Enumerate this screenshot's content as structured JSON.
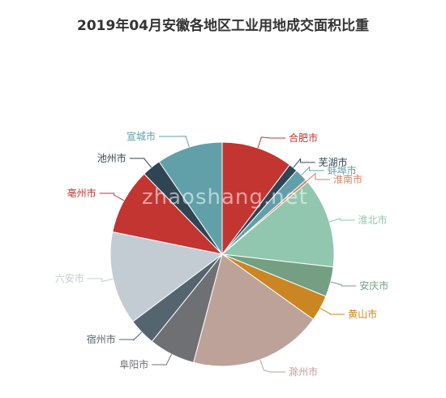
{
  "chart_data": {
    "type": "pie",
    "title": "2019年04月安徽各地区工业用地成交面积比重",
    "slices": [
      {
        "label": "合肥市",
        "value": 10.5,
        "color": "#c23531",
        "label_pos": "right"
      },
      {
        "label": "芜湖市",
        "value": 1.3,
        "color": "#2f4554",
        "label_pos": "right"
      },
      {
        "label": "蚌埠市",
        "value": 1.9,
        "color": "#61a0a8",
        "label_pos": "right"
      },
      {
        "label": "淮南市",
        "value": 0.4,
        "color": "#d48265",
        "label_pos": "right"
      },
      {
        "label": "淮北市",
        "value": 13.2,
        "color": "#91c7ae",
        "label_pos": "right"
      },
      {
        "label": "安庆市",
        "value": 4.4,
        "color": "#749f83",
        "label_pos": "right"
      },
      {
        "label": "黄山市",
        "value": 3.8,
        "color": "#ca8622",
        "label_pos": "right"
      },
      {
        "label": "滁州市",
        "value": 19.6,
        "color": "#bda29a",
        "label_pos": "right"
      },
      {
        "label": "阜阳市",
        "value": 6.8,
        "color": "#6e7074",
        "label_pos": "left"
      },
      {
        "label": "宿州市",
        "value": 4.0,
        "color": "#546570",
        "label_pos": "left"
      },
      {
        "label": "六安市",
        "value": 13.7,
        "color": "#c4ccd3",
        "label_pos": "left"
      },
      {
        "label": "亳州市",
        "value": 9.7,
        "color": "#c23531",
        "label_pos": "left"
      },
      {
        "label": "池州市",
        "value": 2.8,
        "color": "#2f4554",
        "label_pos": "left"
      },
      {
        "label": "宣城市",
        "value": 9.7,
        "color": "#61a0a8",
        "label_pos": "left"
      }
    ]
  },
  "watermark": "zhaoshang.net"
}
